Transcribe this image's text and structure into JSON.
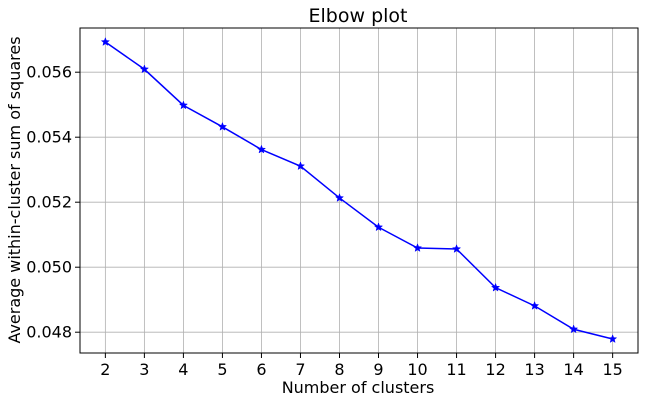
{
  "chart_data": {
    "type": "line",
    "title": "Elbow plot",
    "xlabel": "Number of clusters",
    "ylabel": "Average within-cluster sum of squares",
    "x": [
      2,
      3,
      4,
      5,
      6,
      7,
      8,
      9,
      10,
      11,
      12,
      13,
      14,
      15
    ],
    "series": [
      {
        "values": [
          0.05693,
          0.05609,
          0.05498,
          0.05432,
          0.05362,
          0.05311,
          0.05213,
          0.05123,
          0.05059,
          0.05056,
          0.04937,
          0.04881,
          0.04809,
          0.04779
        ],
        "color": "#0000ff",
        "marker": "star"
      }
    ],
    "xticks": [
      "2",
      "3",
      "4",
      "5",
      "6",
      "7",
      "8",
      "9",
      "10",
      "11",
      "12",
      "13",
      "14",
      "15"
    ],
    "yticks": [
      "0.048",
      "0.050",
      "0.052",
      "0.054",
      "0.056"
    ],
    "ytick_values": [
      0.048,
      0.05,
      0.052,
      0.054,
      0.056
    ],
    "xlim": [
      1.35,
      15.65
    ],
    "ylim": [
      0.04736,
      0.05736
    ],
    "grid": true
  }
}
